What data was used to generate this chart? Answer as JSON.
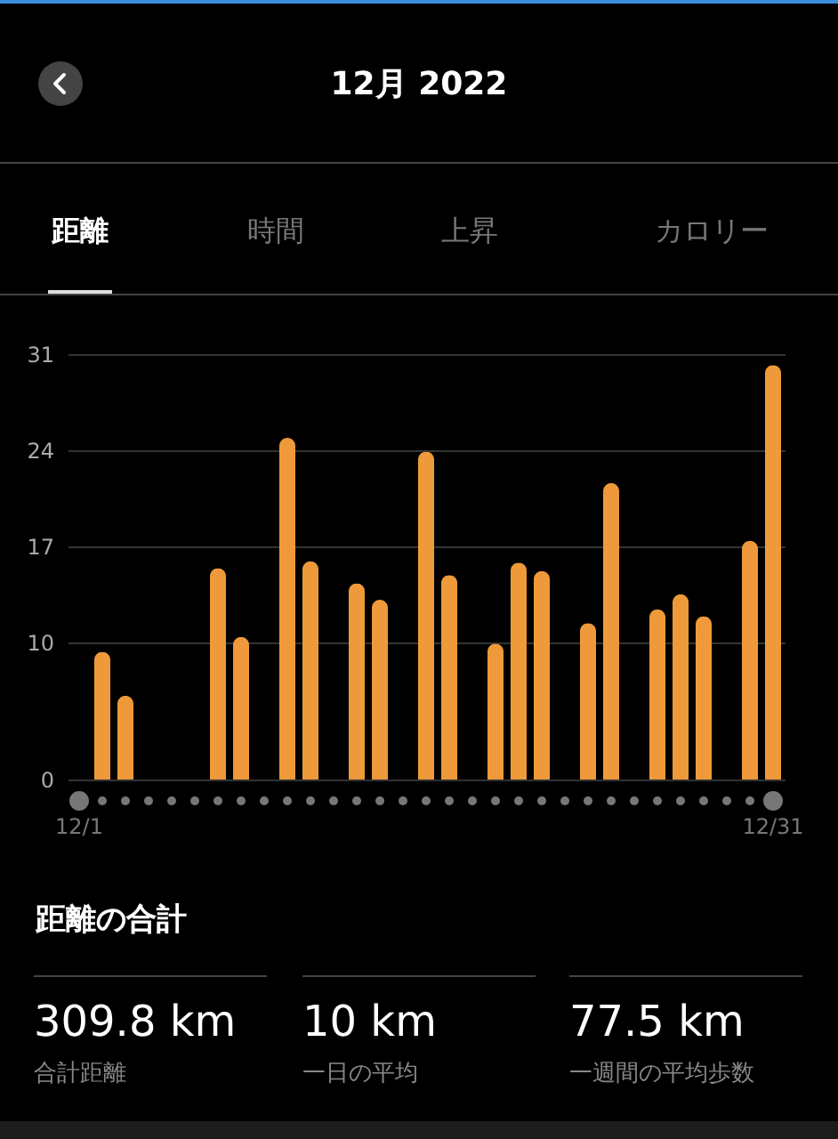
{
  "chart_data": {
    "type": "bar",
    "title": "12月 2022",
    "categories": [
      "12/1",
      null,
      null,
      null,
      null,
      null,
      null,
      null,
      null,
      null,
      null,
      null,
      null,
      null,
      null,
      null,
      null,
      null,
      null,
      null,
      null,
      null,
      null,
      null,
      null,
      null,
      null,
      null,
      null,
      null,
      "12/31"
    ],
    "values": [
      null,
      9.3,
      6.1,
      null,
      null,
      null,
      15.4,
      10.4,
      null,
      24.9,
      15.9,
      null,
      14.3,
      13.1,
      null,
      23.9,
      14.9,
      null,
      9.9,
      15.8,
      15.2,
      null,
      11.4,
      21.6,
      null,
      12.4,
      13.5,
      11.9,
      null,
      17.4,
      30.2
    ],
    "color": "#ee9a3a",
    "ylim": [
      0,
      31
    ],
    "yticks": [
      0,
      10,
      17,
      24,
      31
    ],
    "grid": "y",
    "annotations": [
      "距離",
      "時間",
      "上昇",
      "カロリー",
      "距離の合計",
      "309.8 km",
      "合計距離",
      "10 km",
      "一日の平均",
      "77.5 km",
      "一週間の平均歩数"
    ]
  }
}
